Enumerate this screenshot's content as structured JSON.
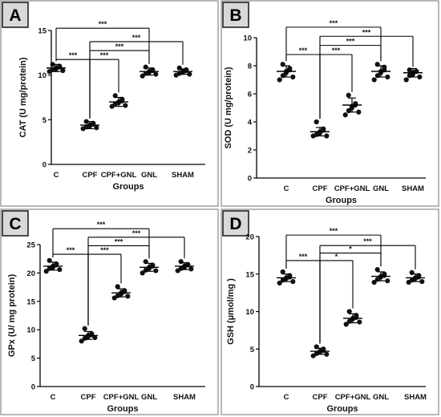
{
  "chart_data": [
    {
      "type": "scatter",
      "panel_label": "A",
      "xlabel": "Groups",
      "ylabel": "CAT (U mg/protein)",
      "categories": [
        "C",
        "CPF",
        "CPF+GNL",
        "GNL",
        "SHAM"
      ],
      "ylim": [
        0,
        15
      ],
      "yticks": [
        0,
        5,
        10,
        15
      ],
      "ytick_labels": [
        "0",
        "5",
        "10",
        "15"
      ],
      "groups": [
        {
          "name": "C",
          "mean": 10.8,
          "sd": 0.4,
          "points": [
            10.4,
            10.6,
            10.8,
            11.0,
            11.2,
            10.7,
            10.9,
            10.5
          ]
        },
        {
          "name": "CPF",
          "mean": 4.4,
          "sd": 0.4,
          "points": [
            4.0,
            4.2,
            4.4,
            4.6,
            4.8,
            4.3,
            4.5,
            4.1
          ]
        },
        {
          "name": "CPF+GNL",
          "mean": 7.0,
          "sd": 0.5,
          "points": [
            6.5,
            6.8,
            7.0,
            7.3,
            7.7,
            6.9,
            7.1,
            6.6
          ]
        },
        {
          "name": "GNL",
          "mean": 10.4,
          "sd": 0.4,
          "points": [
            9.9,
            10.2,
            10.4,
            10.6,
            10.9,
            10.3,
            10.5,
            10.1
          ]
        },
        {
          "name": "SHAM",
          "mean": 10.4,
          "sd": 0.3,
          "points": [
            10.0,
            10.2,
            10.4,
            10.6,
            10.8,
            10.3,
            10.5,
            10.1
          ]
        }
      ],
      "significance": [
        {
          "from": 0,
          "to": 1,
          "y": 11.75,
          "label": "***"
        },
        {
          "from": 1,
          "to": 2,
          "y": 11.75,
          "label": "***"
        },
        {
          "from": 1,
          "to": 3,
          "y": 12.75,
          "label": "***"
        },
        {
          "from": 1,
          "to": 4,
          "y": 13.75,
          "label": "***"
        },
        {
          "from": 0,
          "to": 3,
          "y": 15.25,
          "label": "***"
        }
      ]
    },
    {
      "type": "scatter",
      "panel_label": "B",
      "xlabel": "Groups",
      "ylabel": "SOD (U mg/protein)",
      "categories": [
        "C",
        "CPF",
        "CPF+GNL",
        "GNL",
        "SHAM"
      ],
      "ylim": [
        0,
        10
      ],
      "yticks": [
        0,
        2,
        4,
        6,
        8,
        10
      ],
      "ytick_labels": [
        "0",
        "2",
        "4",
        "6",
        "8",
        "10"
      ],
      "groups": [
        {
          "name": "C",
          "mean": 7.6,
          "sd": 0.4,
          "points": [
            7.0,
            7.3,
            7.6,
            7.8,
            8.1,
            7.5,
            7.7,
            7.2
          ]
        },
        {
          "name": "CPF",
          "mean": 3.3,
          "sd": 0.3,
          "points": [
            3.0,
            3.1,
            3.3,
            3.5,
            4.0,
            3.2,
            3.4,
            3.0
          ]
        },
        {
          "name": "CPF+GNL",
          "mean": 5.2,
          "sd": 0.5,
          "points": [
            4.5,
            4.8,
            5.1,
            5.3,
            5.9,
            5.0,
            5.2,
            4.7
          ]
        },
        {
          "name": "GNL",
          "mean": 7.6,
          "sd": 0.4,
          "points": [
            7.0,
            7.3,
            7.6,
            7.9,
            8.1,
            7.5,
            7.7,
            7.2
          ]
        },
        {
          "name": "SHAM",
          "mean": 7.5,
          "sd": 0.3,
          "points": [
            7.0,
            7.3,
            7.5,
            7.6,
            7.7,
            7.4,
            7.6,
            7.2
          ]
        }
      ],
      "significance": [
        {
          "from": 0,
          "to": 1,
          "y": 8.8,
          "label": "***"
        },
        {
          "from": 1,
          "to": 2,
          "y": 8.8,
          "label": "***"
        },
        {
          "from": 1,
          "to": 3,
          "y": 9.45,
          "label": "***"
        },
        {
          "from": 1,
          "to": 4,
          "y": 10.1,
          "label": "***"
        },
        {
          "from": 0,
          "to": 3,
          "y": 10.75,
          "label": "***"
        }
      ]
    },
    {
      "type": "scatter",
      "panel_label": "C",
      "xlabel": "Groups",
      "ylabel": "GPx (U/ mg protein)",
      "categories": [
        "C",
        "CPF",
        "CPF+GNL",
        "GNL",
        "SHAM"
      ],
      "ylim": [
        0,
        25
      ],
      "yticks": [
        0,
        5,
        10,
        15,
        20,
        25
      ],
      "ytick_labels": [
        "0",
        "5",
        "10",
        "15",
        "20",
        "25"
      ],
      "groups": [
        {
          "name": "C",
          "mean": 21.2,
          "sd": 0.7,
          "points": [
            20.3,
            20.8,
            21.2,
            21.6,
            22.2,
            21.0,
            21.4,
            20.6
          ]
        },
        {
          "name": "CPF",
          "mean": 9.0,
          "sd": 0.7,
          "points": [
            8.0,
            8.5,
            9.0,
            9.3,
            10.2,
            8.8,
            9.1,
            8.6
          ]
        },
        {
          "name": "CPF+GNL",
          "mean": 16.5,
          "sd": 0.7,
          "points": [
            15.6,
            16.0,
            16.5,
            16.9,
            17.6,
            16.3,
            16.7,
            15.9
          ]
        },
        {
          "name": "GNL",
          "mean": 21.0,
          "sd": 0.7,
          "points": [
            20.0,
            20.5,
            21.0,
            21.4,
            22.0,
            20.8,
            21.2,
            20.4
          ]
        },
        {
          "name": "SHAM",
          "mean": 21.2,
          "sd": 0.6,
          "points": [
            20.4,
            20.8,
            21.2,
            21.5,
            22.0,
            21.0,
            21.4,
            20.7
          ]
        }
      ],
      "significance": [
        {
          "from": 0,
          "to": 1,
          "y": 23.3,
          "label": "***"
        },
        {
          "from": 1,
          "to": 2,
          "y": 23.3,
          "label": "***"
        },
        {
          "from": 1,
          "to": 3,
          "y": 24.8,
          "label": "***"
        },
        {
          "from": 1,
          "to": 4,
          "y": 26.3,
          "label": "***"
        },
        {
          "from": 0,
          "to": 3,
          "y": 27.8,
          "label": "***"
        }
      ]
    },
    {
      "type": "scatter",
      "panel_label": "D",
      "xlabel": "Groups",
      "ylabel": "GSH (µmol/mg )",
      "categories": [
        "C",
        "CPF",
        "CPF+GNL",
        "GNL",
        "SHAM"
      ],
      "ylim": [
        0,
        20
      ],
      "yticks": [
        0,
        5,
        10,
        15,
        20
      ],
      "ytick_labels": [
        "0",
        "5",
        "10",
        "15",
        "20"
      ],
      "groups": [
        {
          "name": "C",
          "mean": 14.5,
          "sd": 0.5,
          "points": [
            13.8,
            14.2,
            14.5,
            14.8,
            15.3,
            14.4,
            14.6,
            14.0
          ]
        },
        {
          "name": "CPF",
          "mean": 4.7,
          "sd": 0.4,
          "points": [
            4.1,
            4.4,
            4.7,
            5.0,
            5.3,
            4.6,
            4.8,
            4.3
          ]
        },
        {
          "name": "CPF+GNL",
          "mean": 9.1,
          "sd": 0.6,
          "points": [
            8.3,
            8.7,
            9.1,
            9.5,
            10.0,
            9.0,
            9.2,
            8.6
          ]
        },
        {
          "name": "GNL",
          "mean": 14.7,
          "sd": 0.6,
          "points": [
            13.9,
            14.3,
            14.7,
            15.0,
            15.6,
            14.6,
            14.8,
            14.1
          ]
        },
        {
          "name": "SHAM",
          "mean": 14.5,
          "sd": 0.5,
          "points": [
            13.9,
            14.2,
            14.5,
            14.8,
            15.2,
            14.4,
            14.6,
            14.0
          ]
        }
      ],
      "significance": [
        {
          "from": 0,
          "to": 1,
          "y": 16.8,
          "label": "***"
        },
        {
          "from": 1,
          "to": 2,
          "y": 16.8,
          "label": "*"
        },
        {
          "from": 1,
          "to": 3,
          "y": 17.8,
          "label": "*"
        },
        {
          "from": 1,
          "to": 4,
          "y": 18.8,
          "label": "***"
        },
        {
          "from": 0,
          "to": 3,
          "y": 20.2,
          "label": "***"
        }
      ]
    }
  ]
}
